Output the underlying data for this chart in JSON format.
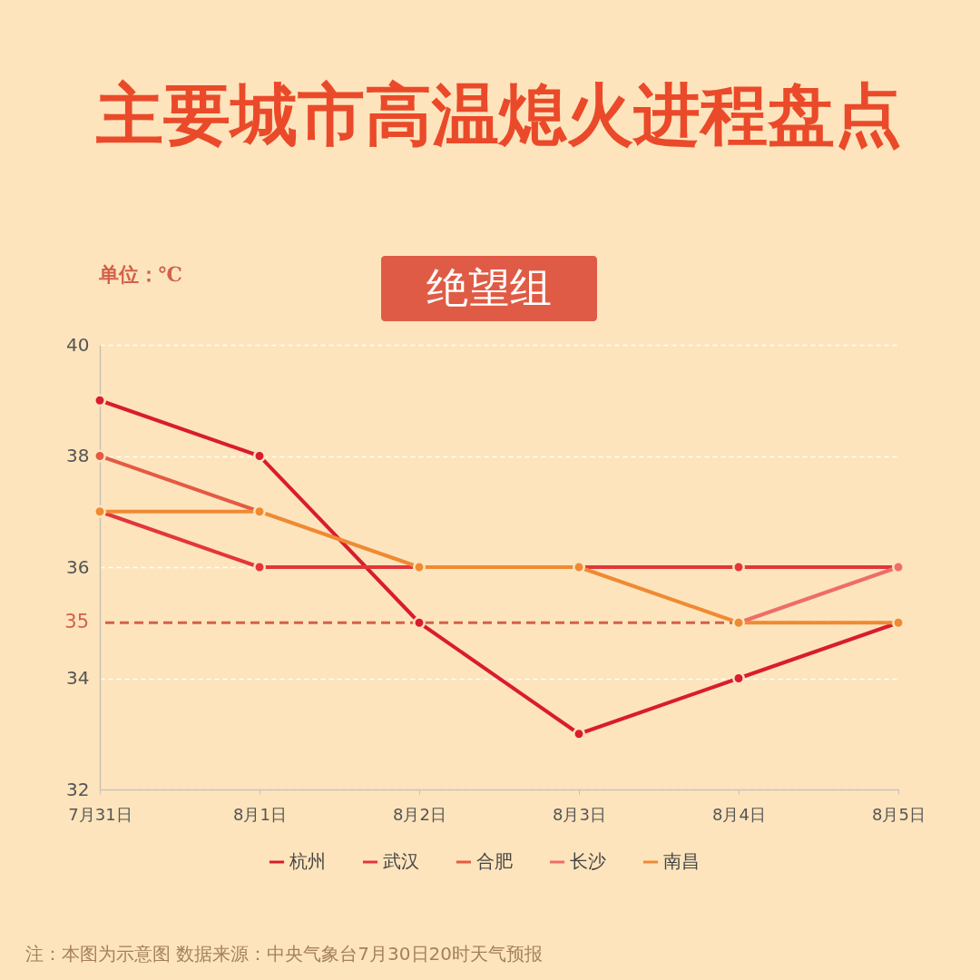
{
  "chart_data": {
    "type": "line",
    "title": "主要城市高温熄火进程盘点",
    "subtitle": "绝望组",
    "ylabel": "单位：℃",
    "categories": [
      "7月31日",
      "8月1日",
      "8月2日",
      "8月3日",
      "8月4日",
      "8月5日"
    ],
    "series": [
      {
        "name": "杭州",
        "color": "#d91c2e",
        "values": [
          39,
          38,
          35,
          33,
          34,
          35
        ]
      },
      {
        "name": "武汉",
        "color": "#e2363b",
        "values": [
          37,
          36,
          36,
          36,
          36,
          36
        ]
      },
      {
        "name": "合肥",
        "color": "#e45a45",
        "values": [
          38,
          37,
          null,
          null,
          null,
          null
        ]
      },
      {
        "name": "长沙",
        "color": "#ee6d69",
        "values": [
          null,
          null,
          null,
          null,
          35,
          36
        ]
      },
      {
        "name": "南昌",
        "color": "#ef8a33",
        "values": [
          37,
          37,
          36,
          36,
          35,
          35
        ]
      }
    ],
    "ylim": [
      32,
      40
    ],
    "yticks": [
      32,
      34,
      36,
      38,
      40
    ],
    "ref_lines": [
      {
        "axis": "y",
        "value": 35,
        "label": "35",
        "color": "#d2614b",
        "line_style": "dashed"
      }
    ],
    "annotations": [
      "注：本图为示意图 数据来源：中央气象台7月30日20时天气预报"
    ],
    "grid": "y",
    "legend": "bottom",
    "marker": "circle",
    "line_style": "solid"
  }
}
